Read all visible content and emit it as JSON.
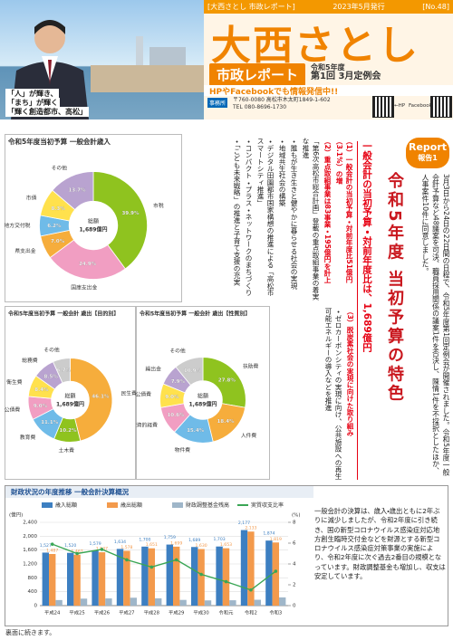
{
  "header": {
    "series_label": "[大西さとし 市政レポート]",
    "issue_date": "2023年5月発行",
    "issue_no": "[No.48]",
    "name": "大西さとし",
    "report_title": "市政レポート",
    "session": "令和5年度",
    "session_detail": "第1回 3月定例会",
    "sns_notice": "HPやFacebookでも情報発信中!!",
    "office_label": "事務所",
    "address": "〒760-0080 高松市木太町1849-1-602",
    "tel": "TEL 080-8696-1730",
    "hp_label": "←HP",
    "fb_label": "Facebook→"
  },
  "photo_caption": [
    "「人」が輝き、",
    "「まち」が輝く",
    "「輝く創造都市、高松」"
  ],
  "report": {
    "badge": "Report",
    "badge_sub": "報告1",
    "title": "令和5年度 当初予算の特色",
    "highlight": "一般会計の当初予算・対前年度比は、1,689億円",
    "intro": "3月3日から24日の22日間の日程で、令和5年度第1回定例会が開催されました。令和5年度一般会計予算など48議案を可決、職員採用関係の議案1件を否決し、陳情1件を不採択としたほか、人事案件10件に同意しました。",
    "points_a": [
      "（1）一般会計の当初予算・対前年度比51億円（3.1%）の増",
      "（2）重点取組事業は83事業・195億円を計上",
      "「第6次高松市総合計画」登載の重点取組事業の着実な推進",
      "・誰もが生き生きと健やかに暮らせる社会の実現",
      "・地域共生社会の構築",
      "・デジタル田園都市国家構想の推進による「高松市スマートシティ推進」",
      "・コンパクト・プラス・ネットワークのまちづくり",
      "・「こども未来戦略」の推進と子育て支援の充実"
    ],
    "points_b": [
      "（3）脱炭素社会の実現に向けた取り組み",
      "・ゼロカーボンシティの実現に向け、公共施設への再生可能エネルギーの導入などを推進"
    ]
  },
  "charts": [
    {
      "title": "令和5年度当初予算 一般会計歳入",
      "center_title": "総額",
      "center_value": "1,689億円",
      "categories": [
        "市税",
        "国庫支出金",
        "県支出金",
        "地方交付税",
        "市債",
        "その他"
      ],
      "values": [
        39.9,
        24.9,
        7.0,
        6.2,
        8.3,
        13.7
      ],
      "value_labels": [
        "39.9%",
        "24.9%",
        "7.0%",
        "6.2%",
        "8.3%",
        "13.7%"
      ],
      "colors": [
        "#8fc31f",
        "#f19ec2",
        "#f6ad3c",
        "#6fbbe8",
        "#ffe14d",
        "#b9a3d0"
      ]
    },
    {
      "title": "令和5年度当初予算 一般会計 歳出【目的別】",
      "center_title": "総額",
      "center_value": "1,689億円",
      "categories": [
        "民生費",
        "土木費",
        "教育費",
        "公債費",
        "衛生費",
        "総務費",
        "その他"
      ],
      "values": [
        46.1,
        10.2,
        11.1,
        9.0,
        8.4,
        8.5,
        6.7
      ],
      "value_labels": [
        "46.1%",
        "10.2%",
        "11.1%",
        "9.0%",
        "8.4%",
        "8.5%",
        "6.7%"
      ],
      "colors": [
        "#f6ad3c",
        "#8fc31f",
        "#6fbbe8",
        "#f19ec2",
        "#ffe14d",
        "#b9a3d0",
        "#cccccc"
      ]
    },
    {
      "title": "令和5年度当初予算 一般会計 歳出【性質別】",
      "center_title": "総額",
      "center_value": "1,689億円",
      "categories": [
        "扶助費",
        "人件費",
        "物件費",
        "投資的経費",
        "公債費",
        "繰出金",
        "その他"
      ],
      "values": [
        27.8,
        18.4,
        15.4,
        10.6,
        9.0,
        7.9,
        10.9
      ],
      "value_labels": [
        "27.8%",
        "18.4%",
        "15.4%",
        "10.6%",
        "9.0%",
        "7.9%",
        "10.9%"
      ],
      "colors": [
        "#8fc31f",
        "#f6ad3c",
        "#6fbbe8",
        "#f19ec2",
        "#ffe14d",
        "#b9a3d0",
        "#cccccc"
      ]
    }
  ],
  "finance": {
    "title": "財政状況の年度推移 一般会計決算概況",
    "y_unit": "(億円)",
    "y2_unit": "(%)",
    "categories": [
      "平成24",
      "平成25",
      "平成26",
      "平成27",
      "平成28",
      "平成29",
      "平成30",
      "令和元",
      "令和2",
      "令和3"
    ],
    "series": [
      {
        "name": "歳入総額",
        "color": "#3d7fc1",
        "values": [
          1527,
          1520,
          1579,
          1634,
          1700,
          1759,
          1689,
          1703,
          2177,
          1874
        ],
        "value_labels": [
          "1,527",
          "1,520",
          "1,579",
          "1,634",
          "1,700",
          "1,759",
          "1,689",
          "1,703",
          "2,177",
          "1,874"
        ]
      },
      {
        "name": "歳出総額",
        "color": "#f39a4c",
        "values": [
          1487,
          1467,
          1537,
          1578,
          1651,
          1699,
          1630,
          1653,
          2133,
          1819
        ],
        "value_labels": [
          "1,487",
          "1,467",
          "1,537",
          "1,578",
          "1,651",
          "1,699",
          "1,630",
          "1,653",
          "2,133",
          "1,819"
        ]
      },
      {
        "name": "財政調整基金残高",
        "color": "#9fb6c9",
        "values": [
          160,
          201,
          207,
          227,
          209,
          164,
          150,
          154,
          168,
          236
        ]
      }
    ],
    "line": {
      "name": "実質収支比率",
      "color": "#3aa655",
      "axis": "y2",
      "values": [
        5.9,
        5.0,
        5.4,
        4.4,
        3.7,
        4.4,
        3.0,
        2.3,
        1.5,
        3.3
      ]
    },
    "ylim": [
      0,
      2400
    ],
    "yticks": [
      0,
      400,
      800,
      {
        "value": 1200,
        "label": "1,200"
      },
      {
        "value": 1600,
        "label": "1,600"
      },
      {
        "value": 2000,
        "label": "2,000"
      },
      {
        "value": 2400,
        "label": "2,400"
      }
    ],
    "y2lim": [
      0,
      8
    ],
    "y2ticks": [
      0,
      2,
      4,
      6,
      8
    ],
    "grid": true,
    "text": "一般会計の決算は、歳入・歳出ともに2年ぶりに減少しましたが、令和2年度に引き続き、国の新型コロナウイルス感染症対応地方創生臨時交付金などを財源とする新型コロナウイルス感染症対策事業の実施により、令和2年度に次ぐ過去2番目の規模となっています。財政調整基金も増加し、収支は安定しています。"
  },
  "footer": "裏面に続きます。"
}
